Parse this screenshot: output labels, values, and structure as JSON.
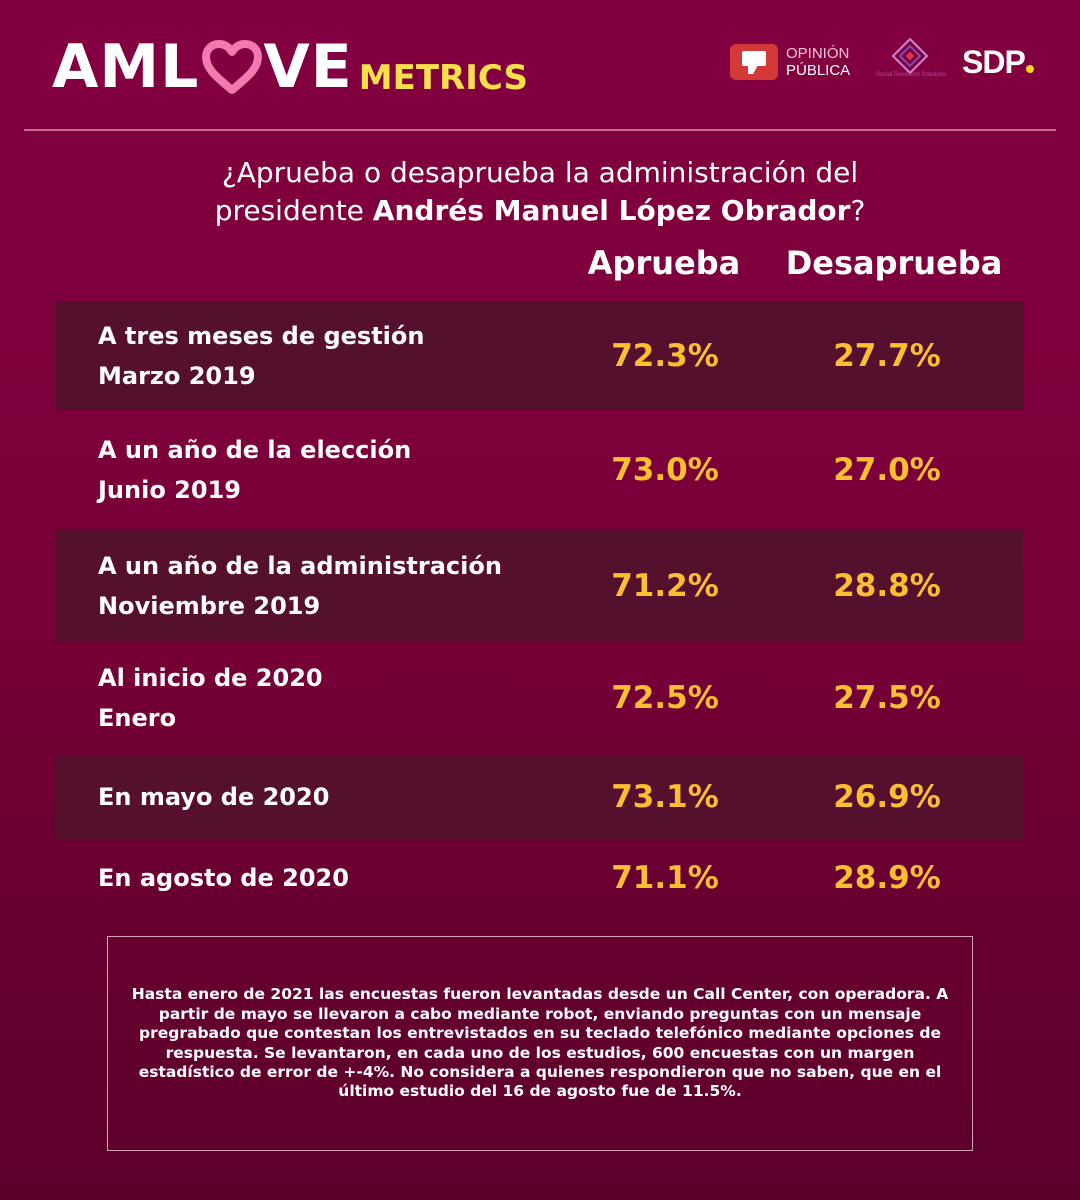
{
  "header": {
    "brand_main_left": "AML",
    "brand_heart": "heart-icon",
    "brand_main_right": "VE",
    "brand_sub": "METRICS",
    "partners": {
      "opinion_publica_line1": "OPINIÓN",
      "opinion_publica_line2": "PÚBLICA",
      "srs_text": "Social Research Solutions",
      "sdp": "SDP"
    },
    "colors": {
      "background": "#7a0039",
      "brand_sub": "#f7e04a",
      "heart": "#f27ab0",
      "values": "#fbbf2f",
      "shaded_row": "#55102d"
    }
  },
  "question": {
    "part1": "¿Aprueba o desaprueba la administración del",
    "part2_prefix": "presidente ",
    "part2_bold": "Andrés Manuel López Obrador",
    "part2_suffix": "?"
  },
  "chart_data": {
    "type": "table",
    "title": "¿Aprueba o desaprueba la administración del presidente Andrés Manuel López Obrador?",
    "columns": [
      "Aprueba",
      "Desaprueba"
    ],
    "rows": [
      {
        "label_line1": "A tres meses de gestión",
        "label_line2": "Marzo 2019",
        "aprueba": "72.3%",
        "desaprueba": "27.7%"
      },
      {
        "label_line1": "A un año de la elección",
        "label_line2": "Junio 2019",
        "aprueba": "73.0%",
        "desaprueba": "27.0%"
      },
      {
        "label_line1": "A un año de la administración",
        "label_line2": "Noviembre 2019",
        "aprueba": "71.2%",
        "desaprueba": "28.8%"
      },
      {
        "label_line1": "Al inicio de 2020",
        "label_line2": "Enero",
        "aprueba": "72.5%",
        "desaprueba": "27.5%"
      },
      {
        "label_line1": "En mayo de 2020",
        "label_line2": "",
        "aprueba": "73.1%",
        "desaprueba": "26.9%"
      },
      {
        "label_line1": "En agosto de 2020",
        "label_line2": "",
        "aprueba": "71.1%",
        "desaprueba": "28.9%"
      }
    ],
    "series": [
      {
        "name": "Aprueba",
        "values": [
          72.3,
          73.0,
          71.2,
          72.5,
          73.1,
          71.1
        ]
      },
      {
        "name": "Desaprueba",
        "values": [
          27.7,
          27.0,
          28.8,
          27.5,
          26.9,
          28.9
        ]
      }
    ],
    "categories": [
      "Marzo 2019",
      "Junio 2019",
      "Noviembre 2019",
      "Enero 2020",
      "Mayo 2020",
      "Agosto 2020"
    ]
  },
  "footnote": "Hasta enero de 2021 las encuestas fueron levantadas desde un Call Center, con operadora. A partir de mayo se llevaron a cabo mediante robot, enviando preguntas con un mensaje pregrabado que contestan los entrevistados en su teclado telefónico mediante opciones de respuesta. Se levantaron, en cada uno de los estudios, 600 encuestas con un margen estadístico de error de +-4%. No considera a quienes respondieron que no saben, que en el último estudio del 16 de agosto fue de 11.5%."
}
